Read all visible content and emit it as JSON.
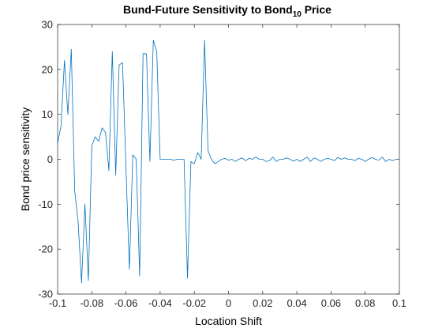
{
  "chart_data": {
    "type": "line",
    "title": "Bund-Future Sensitivity to Bond",
    "title_subscript": "10",
    "title_suffix": " Price",
    "xlabel": "Location Shift",
    "ylabel": "Bond price sensitivity",
    "xlim": [
      -0.1,
      0.1
    ],
    "ylim": [
      -30,
      30
    ],
    "xticks": [
      -0.1,
      -0.08,
      -0.06,
      -0.04,
      -0.02,
      0,
      0.02,
      0.04,
      0.06,
      0.08,
      0.1
    ],
    "xtick_labels": [
      "-0.1",
      "-0.08",
      "-0.06",
      "-0.04",
      "-0.02",
      "0",
      "0.02",
      "0.04",
      "0.06",
      "0.08",
      "0.1"
    ],
    "yticks": [
      -30,
      -20,
      -10,
      0,
      10,
      20,
      30
    ],
    "ytick_labels": [
      "-30",
      "-20",
      "-10",
      "0",
      "10",
      "20",
      "30"
    ],
    "grid": false,
    "line_color": "#0072BD",
    "series": [
      {
        "x": [
          -0.1,
          -0.098,
          -0.096,
          -0.094,
          -0.092,
          -0.09,
          -0.088,
          -0.086,
          -0.084,
          -0.082,
          -0.08,
          -0.078,
          -0.076,
          -0.074,
          -0.072,
          -0.07,
          -0.068,
          -0.066,
          -0.064,
          -0.062,
          -0.06,
          -0.058,
          -0.056,
          -0.054,
          -0.052,
          -0.05,
          -0.048,
          -0.046,
          -0.044,
          -0.042,
          -0.04,
          -0.038,
          -0.036,
          -0.034,
          -0.032,
          -0.03,
          -0.028,
          -0.026,
          -0.024,
          -0.022,
          -0.02,
          -0.018,
          -0.016,
          -0.014,
          -0.012,
          -0.01,
          -0.008,
          -0.006,
          -0.004,
          -0.002,
          0,
          0.002,
          0.004,
          0.006,
          0.008,
          0.01,
          0.012,
          0.014,
          0.016,
          0.018,
          0.02,
          0.022,
          0.024,
          0.026,
          0.028,
          0.03,
          0.032,
          0.034,
          0.036,
          0.038,
          0.04,
          0.042,
          0.044,
          0.046,
          0.048,
          0.05,
          0.052,
          0.054,
          0.056,
          0.058,
          0.06,
          0.062,
          0.064,
          0.066,
          0.068,
          0.07,
          0.072,
          0.074,
          0.076,
          0.078,
          0.08,
          0.082,
          0.084,
          0.086,
          0.088,
          0.09,
          0.092,
          0.094,
          0.096,
          0.098
        ],
        "y": [
          3.5,
          7.5,
          22.0,
          10.0,
          24.5,
          -7.0,
          -14.0,
          -27.5,
          -10.0,
          -27.0,
          3.0,
          5.0,
          4.0,
          7.0,
          6.0,
          -2.5,
          24.0,
          -3.5,
          21.0,
          21.5,
          -2.0,
          -24.5,
          1.0,
          0.0,
          -26.0,
          23.5,
          23.5,
          -0.5,
          26.5,
          24.0,
          0.0,
          0.0,
          0.0,
          0.0,
          -0.2,
          0.0,
          0.0,
          0.0,
          -26.5,
          -0.5,
          -1.0,
          1.5,
          0.0,
          26.5,
          2.0,
          0.0,
          -1.0,
          -0.5,
          0.0,
          0.2,
          -0.2,
          0.0,
          -0.5,
          0.0,
          0.3,
          -0.3,
          0.2,
          0.0,
          0.5,
          0.0,
          0.0,
          -0.5,
          -0.3,
          0.5,
          -0.5,
          0.0,
          0.0,
          0.3,
          0.0,
          -0.4,
          0.0,
          -0.5,
          0.0,
          0.5,
          -0.5,
          0.3,
          0.0,
          -0.5,
          0.0,
          0.2,
          0.0,
          -0.3,
          0.4,
          0.0,
          0.3,
          0.0,
          0.0,
          -0.3,
          0.2,
          0.0,
          -0.5,
          0.0,
          0.4,
          0.0,
          -0.2,
          0.5,
          -0.5,
          0.0,
          -0.3,
          0.0
        ]
      }
    ]
  }
}
